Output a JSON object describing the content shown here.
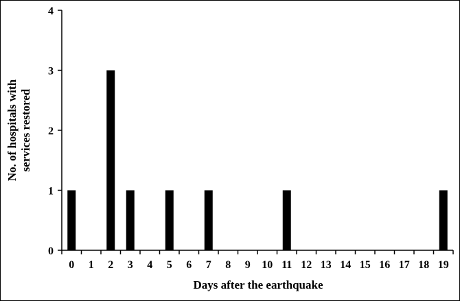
{
  "chart_data": {
    "type": "bar",
    "title": "",
    "xlabel": "Days after the earthquake",
    "ylabel": [
      "No. of hospitals with",
      "services restored"
    ],
    "categories": [
      "0",
      "1",
      "2",
      "3",
      "4",
      "5",
      "6",
      "7",
      "8",
      "9",
      "10",
      "11",
      "12",
      "13",
      "14",
      "15",
      "16",
      "17",
      "18",
      "19"
    ],
    "values": [
      1,
      0,
      3,
      1,
      0,
      1,
      0,
      1,
      0,
      0,
      0,
      1,
      0,
      0,
      0,
      0,
      0,
      0,
      0,
      1
    ],
    "ylim": [
      0,
      4
    ],
    "yticks": [
      "0",
      "1",
      "2",
      "3",
      "4"
    ],
    "grid": false,
    "bar_color": "#000000"
  }
}
